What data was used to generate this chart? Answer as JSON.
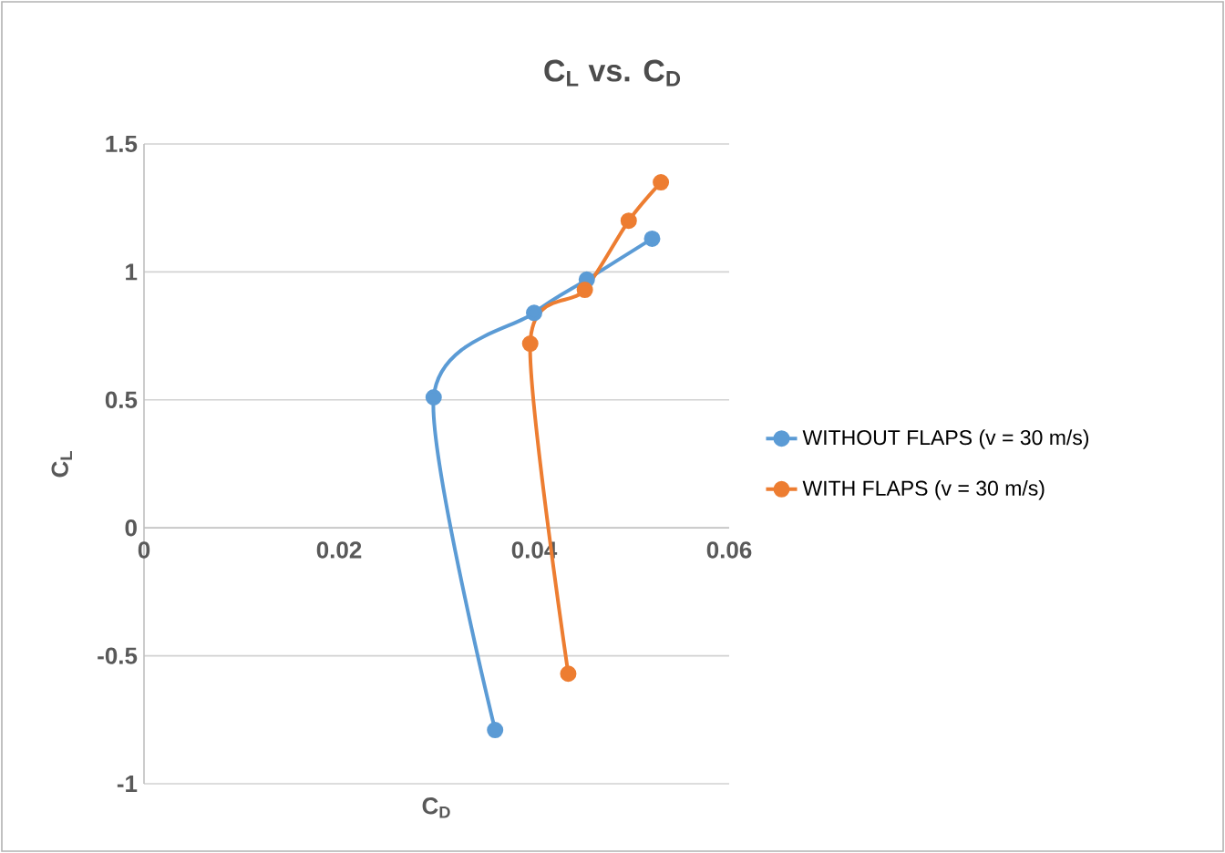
{
  "chart_data": {
    "type": "line",
    "title": "C$_{L}$ vs. C$_{D}$",
    "xlabel": "C$_{D}$",
    "ylabel": "C$_{L}$",
    "series": [
      {
        "name": "WITHOUT FLAPS (v = 30 m/s)",
        "color": "#5b9bd5",
        "x": [
          0.036,
          0.0297,
          0.04,
          0.0454,
          0.0521
        ],
        "values": [
          -0.79,
          0.51,
          0.84,
          0.97,
          1.13
        ]
      },
      {
        "name": "WITH FLAPS (v = 30 m/s)",
        "color": "#ed7d31",
        "x": [
          0.0435,
          0.0396,
          0.0452,
          0.0497,
          0.053
        ],
        "values": [
          -0.57,
          0.72,
          0.93,
          1.2,
          1.35
        ]
      }
    ],
    "xlim": [
      0,
      0.06
    ],
    "xticks": [
      0,
      0.02,
      0.04,
      0.06
    ],
    "ylim": [
      -1,
      1.5
    ],
    "yticks": [
      -1,
      -0.5,
      0,
      0.5,
      1,
      1.5
    ],
    "grid": "y",
    "legend": "right",
    "marker": "circle",
    "line_style": "solid"
  }
}
